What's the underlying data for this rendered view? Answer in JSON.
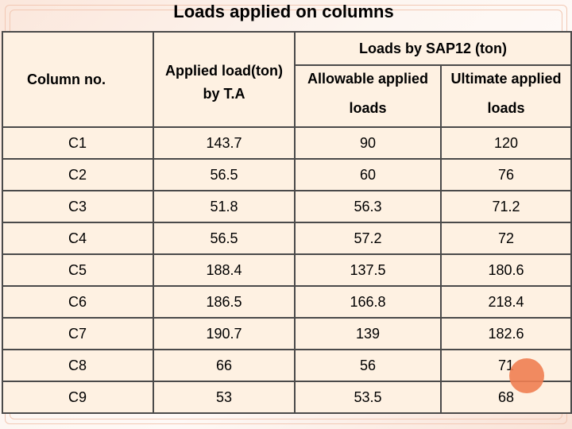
{
  "title": "Loads applied on columns",
  "headers": {
    "column_no": "Column no.",
    "applied_load_line1": "Applied load(ton)",
    "applied_load_line2": "by T.A",
    "sap_group": "Loads by SAP12 (ton)",
    "allowable_line1": "Allowable applied",
    "allowable_line2": "loads",
    "ultimate_line1": "Ultimate applied",
    "ultimate_line2": "loads"
  },
  "rows": [
    {
      "column": "C1",
      "applied": "143.7",
      "allowable": "90",
      "ultimate": "120"
    },
    {
      "column": "C2",
      "applied": "56.5",
      "allowable": "60",
      "ultimate": "76"
    },
    {
      "column": "C3",
      "applied": "51.8",
      "allowable": "56.3",
      "ultimate": "71.2"
    },
    {
      "column": "C4",
      "applied": "56.5",
      "allowable": "57.2",
      "ultimate": "72"
    },
    {
      "column": "C5",
      "applied": "188.4",
      "allowable": "137.5",
      "ultimate": "180.6"
    },
    {
      "column": "C6",
      "applied": "186.5",
      "allowable": "166.8",
      "ultimate": "218.4"
    },
    {
      "column": "C7",
      "applied": "190.7",
      "allowable": "139",
      "ultimate": "182.6"
    },
    {
      "column": "C8",
      "applied": "66",
      "allowable": "56",
      "ultimate": "71"
    },
    {
      "column": "C9",
      "applied": "53",
      "allowable": "53.5",
      "ultimate": "68"
    }
  ],
  "colors": {
    "background": "#fdf4ee",
    "table_fill": "#fef1e2",
    "border": "#4a4a4a",
    "accent_dot": "#f07e52"
  }
}
